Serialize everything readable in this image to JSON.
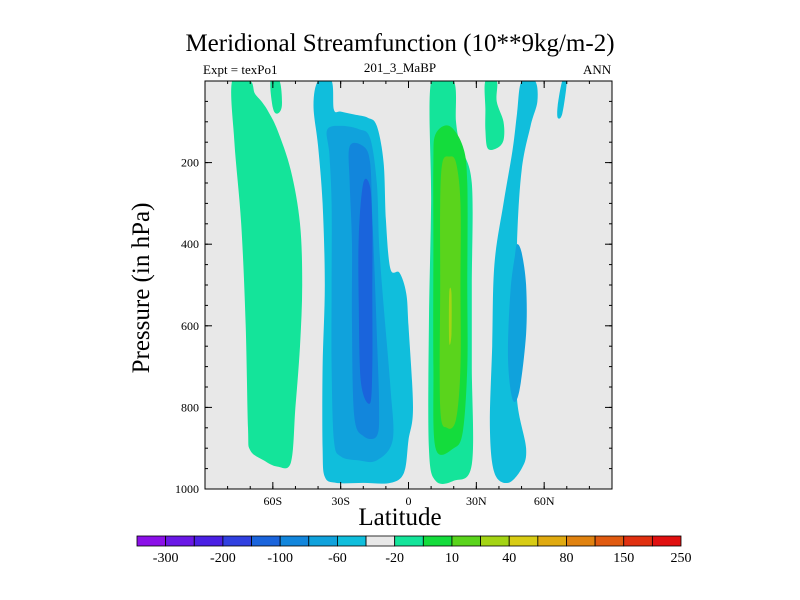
{
  "title": "Meridional Streamfunction (10**9kg/m-2)",
  "left_label": "Expt = texPo1",
  "center_label": "201_3_MaBP",
  "right_label": "ANN",
  "chart_data": {
    "type": "contour",
    "xlabel": "Latitude",
    "ylabel": "Pressure (in hPa)",
    "xlim": [
      -90,
      90
    ],
    "ylim": [
      1000,
      0
    ],
    "y_inverted": true,
    "x_ticks": [
      {
        "value": -60,
        "label": "60S"
      },
      {
        "value": -30,
        "label": "30S"
      },
      {
        "value": 0,
        "label": "0"
      },
      {
        "value": 30,
        "label": "30N"
      },
      {
        "value": 60,
        "label": "60N"
      }
    ],
    "y_ticks": [
      {
        "value": 200,
        "label": "200"
      },
      {
        "value": 400,
        "label": "400"
      },
      {
        "value": 600,
        "label": "600"
      },
      {
        "value": 800,
        "label": "800"
      },
      {
        "value": 1000,
        "label": "1000"
      }
    ],
    "background_color": "#e8e8e8",
    "colorbar": {
      "labels": [
        "-300",
        "-200",
        "-100",
        "-60",
        "-20",
        "10",
        "40",
        "80",
        "150",
        "250"
      ],
      "colors": [
        "#8b10e8",
        "#6a18e6",
        "#4a20e4",
        "#3040e0",
        "#1a64dc",
        "#1286dc",
        "#10a2dc",
        "#10bedc",
        "#e8e8e8",
        "#14e49a",
        "#14dc3c",
        "#5ad41c",
        "#a4d414",
        "#d8cc14",
        "#e0aa10",
        "#e08210",
        "#e05a10",
        "#e03010",
        "#e01010"
      ]
    },
    "fields": [
      {
        "name": "s-hemisphere-outer-cell",
        "level_color": "#14e49a",
        "points": [
          [
            -78,
            0
          ],
          [
            -70,
            0
          ],
          [
            -68,
            30
          ],
          [
            -65,
            50
          ],
          [
            -62,
            75
          ],
          [
            -58,
            120
          ],
          [
            -52,
            220
          ],
          [
            -48,
            350
          ],
          [
            -47,
            500
          ],
          [
            -48,
            650
          ],
          [
            -50,
            800
          ],
          [
            -52,
            935
          ],
          [
            -58,
            945
          ],
          [
            -64,
            930
          ],
          [
            -70,
            905
          ],
          [
            -71,
            850
          ],
          [
            -72,
            600
          ],
          [
            -74,
            350
          ],
          [
            -77,
            150
          ]
        ]
      },
      {
        "name": "s-cell-outer",
        "level_color": "#10bedc",
        "points": [
          [
            -40,
            0
          ],
          [
            -34,
            0
          ],
          [
            -33,
            70
          ],
          [
            -30,
            75
          ],
          [
            -24,
            82
          ],
          [
            -18,
            90
          ],
          [
            -14,
            110
          ],
          [
            -11,
            200
          ],
          [
            -10,
            340
          ],
          [
            -8,
            460
          ],
          [
            -4,
            470
          ],
          [
            -1,
            520
          ],
          [
            0,
            600
          ],
          [
            2,
            800
          ],
          [
            0,
            880
          ],
          [
            -2,
            960
          ],
          [
            -8,
            985
          ],
          [
            -20,
            985
          ],
          [
            -32,
            985
          ],
          [
            -37,
            970
          ],
          [
            -38,
            900
          ],
          [
            -38,
            700
          ],
          [
            -37,
            500
          ],
          [
            -38,
            300
          ],
          [
            -40,
            160
          ],
          [
            -42,
            60
          ]
        ]
      },
      {
        "name": "s-cell-mid",
        "level_color": "#10a2dc",
        "points": [
          [
            -36,
            120
          ],
          [
            -30,
            110
          ],
          [
            -22,
            118
          ],
          [
            -17,
            140
          ],
          [
            -14,
            250
          ],
          [
            -13,
            400
          ],
          [
            -11,
            550
          ],
          [
            -8,
            750
          ],
          [
            -7,
            880
          ],
          [
            -14,
            930
          ],
          [
            -22,
            930
          ],
          [
            -30,
            920
          ],
          [
            -33,
            880
          ],
          [
            -34,
            700
          ],
          [
            -34,
            500
          ],
          [
            -34,
            300
          ],
          [
            -35,
            180
          ]
        ]
      },
      {
        "name": "s-cell-inner",
        "level_color": "#1286dc",
        "points": [
          [
            -26,
            160
          ],
          [
            -20,
            160
          ],
          [
            -17,
            200
          ],
          [
            -16,
            330
          ],
          [
            -15,
            470
          ],
          [
            -14,
            620
          ],
          [
            -13,
            800
          ],
          [
            -14,
            870
          ],
          [
            -20,
            870
          ],
          [
            -24,
            820
          ],
          [
            -25,
            600
          ],
          [
            -25,
            400
          ],
          [
            -26,
            250
          ]
        ]
      },
      {
        "name": "s-cell-core",
        "level_color": "#1a64dc",
        "points": [
          [
            -20,
            250
          ],
          [
            -17,
            260
          ],
          [
            -16,
            360
          ],
          [
            -16,
            520
          ],
          [
            -16,
            700
          ],
          [
            -17,
            790
          ],
          [
            -21,
            740
          ],
          [
            -22,
            550
          ],
          [
            -22,
            380
          ]
        ]
      },
      {
        "name": "n-cell-outer",
        "level_color": "#14e49a",
        "points": [
          [
            10,
            0
          ],
          [
            20,
            0
          ],
          [
            21,
            100
          ],
          [
            23,
            160
          ],
          [
            28,
            250
          ],
          [
            28,
            500
          ],
          [
            28,
            700
          ],
          [
            28,
            940
          ],
          [
            20,
            980
          ],
          [
            12,
            980
          ],
          [
            9,
            900
          ],
          [
            9,
            600
          ],
          [
            10,
            300
          ]
        ]
      },
      {
        "name": "n-cell-mid",
        "level_color": "#14dc3c",
        "points": [
          [
            12,
            130
          ],
          [
            18,
            110
          ],
          [
            24,
            160
          ],
          [
            26,
            250
          ],
          [
            26,
            500
          ],
          [
            26,
            700
          ],
          [
            24,
            860
          ],
          [
            20,
            900
          ],
          [
            12,
            900
          ],
          [
            11,
            700
          ],
          [
            11,
            400
          ],
          [
            11,
            200
          ]
        ]
      },
      {
        "name": "n-cell-inner",
        "level_color": "#5ad41c",
        "points": [
          [
            15,
            200
          ],
          [
            18,
            185
          ],
          [
            21,
            200
          ],
          [
            23,
            300
          ],
          [
            23,
            500
          ],
          [
            23,
            700
          ],
          [
            21,
            830
          ],
          [
            17,
            850
          ],
          [
            14,
            800
          ],
          [
            14,
            500
          ],
          [
            14,
            300
          ]
        ]
      },
      {
        "name": "n-cell-core",
        "level_color": "#a4d414",
        "points": [
          [
            18,
            520
          ],
          [
            19,
            520
          ],
          [
            19,
            620
          ],
          [
            18,
            640
          ]
        ]
      },
      {
        "name": "n-upper-green-patch",
        "level_color": "#14e49a",
        "points": [
          [
            34,
            0
          ],
          [
            39,
            0
          ],
          [
            39,
            50
          ],
          [
            42,
            100
          ],
          [
            42,
            145
          ],
          [
            39,
            165
          ],
          [
            35,
            165
          ],
          [
            34,
            120
          ],
          [
            34,
            70
          ]
        ]
      },
      {
        "name": "n-outer-cell",
        "level_color": "#10bedc",
        "points": [
          [
            50,
            0
          ],
          [
            56,
            0
          ],
          [
            57,
            50
          ],
          [
            54,
            110
          ],
          [
            50,
            220
          ],
          [
            48,
            400
          ],
          [
            48,
            600
          ],
          [
            48,
            780
          ],
          [
            52,
            900
          ],
          [
            50,
            950
          ],
          [
            44,
            985
          ],
          [
            38,
            960
          ],
          [
            36,
            850
          ],
          [
            37,
            650
          ],
          [
            38,
            450
          ],
          [
            42,
            300
          ],
          [
            46,
            170
          ],
          [
            48,
            80
          ]
        ]
      },
      {
        "name": "n-outer-inner",
        "level_color": "#10a2dc",
        "points": [
          [
            48,
            400
          ],
          [
            50,
            420
          ],
          [
            52,
            500
          ],
          [
            52,
            620
          ],
          [
            49,
            760
          ],
          [
            46,
            780
          ],
          [
            44,
            680
          ],
          [
            45,
            520
          ],
          [
            47,
            430
          ]
        ]
      },
      {
        "name": "n-high-lat-patch",
        "level_color": "#10bedc",
        "points": [
          [
            68,
            0
          ],
          [
            70,
            0
          ],
          [
            68,
            80
          ],
          [
            66,
            90
          ],
          [
            66,
            60
          ]
        ]
      },
      {
        "name": "s-upper-small-patch",
        "level_color": "#14e49a",
        "points": [
          [
            -61,
            0
          ],
          [
            -57,
            0
          ],
          [
            -56,
            60
          ],
          [
            -58,
            80
          ],
          [
            -60,
            65
          ]
        ]
      }
    ]
  }
}
